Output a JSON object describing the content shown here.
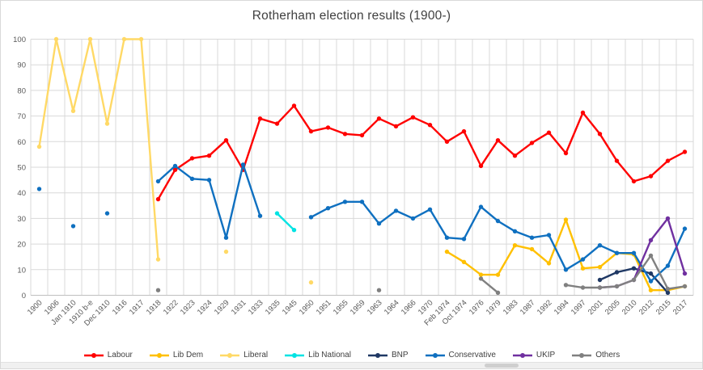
{
  "chart_data": {
    "type": "line",
    "title": "Rotherham election results (1900-)",
    "xlabel": "",
    "ylabel": "",
    "ylim": [
      0,
      100
    ],
    "ytick_step": 10,
    "grid": "both",
    "legend_position": "bottom",
    "marker": "circle",
    "grid_color": "#d9d9d9",
    "axis_text_color": "#595959",
    "title_color": "#404040",
    "categories": [
      "1900",
      "1906",
      "Jan 1910",
      "1910 b-e",
      "Dec 1910",
      "1916",
      "1917",
      "1918",
      "1922",
      "1923",
      "1924",
      "1929",
      "1931",
      "1933",
      "1935",
      "1945",
      "1950",
      "1951",
      "1955",
      "1959",
      "1963",
      "1964",
      "1966",
      "1970",
      "Feb 1974",
      "Oct 1974",
      "1976",
      "1979",
      "1983",
      "1987",
      "1992",
      "1994",
      "1997",
      "2001",
      "2005",
      "2010",
      "2012",
      "2015",
      "2017"
    ],
    "series": [
      {
        "name": "Labour",
        "color": "#ff0000",
        "values": [
          null,
          null,
          null,
          null,
          null,
          null,
          null,
          37.5,
          49,
          53.5,
          54.5,
          60.5,
          49,
          69,
          67,
          74,
          64,
          65.5,
          63,
          62.5,
          69,
          66,
          69.5,
          66.5,
          60,
          64,
          50.5,
          60.5,
          54.5,
          59.5,
          63.5,
          55.5,
          71.3,
          63,
          52.5,
          44.5,
          46.5,
          52.5,
          56
        ]
      },
      {
        "name": "Lib Dem",
        "color": "#ffc000",
        "values": [
          null,
          null,
          null,
          null,
          null,
          null,
          null,
          null,
          null,
          null,
          null,
          null,
          null,
          null,
          null,
          null,
          null,
          null,
          null,
          null,
          null,
          null,
          null,
          null,
          17,
          13,
          8,
          8,
          19.5,
          18,
          12.5,
          29.5,
          10.5,
          11,
          16.5,
          16,
          2,
          2,
          3.5
        ]
      },
      {
        "name": "Liberal",
        "color": "#ffd966",
        "values": [
          58,
          100,
          72,
          100,
          67,
          100,
          100,
          14,
          null,
          null,
          null,
          17,
          null,
          null,
          null,
          null,
          5,
          null,
          null,
          null,
          null,
          null,
          null,
          null,
          null,
          null,
          null,
          null,
          null,
          null,
          null,
          null,
          null,
          null,
          null,
          null,
          null,
          null,
          null
        ]
      },
      {
        "name": "Lib National",
        "color": "#00e3e3",
        "values": [
          null,
          null,
          null,
          null,
          null,
          null,
          null,
          null,
          null,
          null,
          null,
          null,
          null,
          null,
          32,
          25.5,
          null,
          null,
          null,
          null,
          null,
          null,
          null,
          null,
          null,
          null,
          null,
          null,
          null,
          null,
          null,
          null,
          null,
          null,
          null,
          null,
          null,
          null,
          null
        ]
      },
      {
        "name": "BNP",
        "color": "#1f3864",
        "values": [
          null,
          null,
          null,
          null,
          null,
          null,
          null,
          null,
          null,
          null,
          null,
          null,
          null,
          null,
          null,
          null,
          null,
          null,
          null,
          null,
          null,
          null,
          null,
          null,
          null,
          null,
          null,
          null,
          null,
          null,
          null,
          null,
          null,
          6,
          9,
          10.5,
          8.5,
          1,
          null
        ]
      },
      {
        "name": "Conservative",
        "color": "#0f70c0",
        "no_connect": [
          0,
          2,
          4
        ],
        "values": [
          41.5,
          null,
          27,
          null,
          32,
          null,
          null,
          44.5,
          50.5,
          45.5,
          45,
          22.5,
          51,
          31,
          null,
          null,
          30.5,
          34,
          36.5,
          36.5,
          28,
          33,
          30,
          33.5,
          22.5,
          22,
          34.5,
          29,
          25,
          22.5,
          23.5,
          10,
          14,
          19.5,
          16.5,
          16.5,
          5.5,
          11.5,
          26
        ]
      },
      {
        "name": "UKIP",
        "color": "#7030a0",
        "values": [
          null,
          null,
          null,
          null,
          null,
          null,
          null,
          null,
          null,
          null,
          null,
          null,
          null,
          null,
          null,
          null,
          null,
          null,
          null,
          null,
          null,
          null,
          null,
          null,
          null,
          null,
          null,
          null,
          null,
          null,
          null,
          null,
          null,
          3,
          3.5,
          6,
          21.5,
          30,
          8.5
        ]
      },
      {
        "name": "Others",
        "color": "#808080",
        "values": [
          null,
          null,
          null,
          null,
          null,
          null,
          null,
          2,
          null,
          null,
          null,
          null,
          null,
          null,
          null,
          null,
          null,
          null,
          null,
          null,
          2,
          null,
          null,
          null,
          null,
          null,
          6.5,
          1,
          null,
          null,
          null,
          4,
          3,
          3,
          3.5,
          6,
          15.5,
          2.5,
          3.5
        ]
      }
    ]
  }
}
